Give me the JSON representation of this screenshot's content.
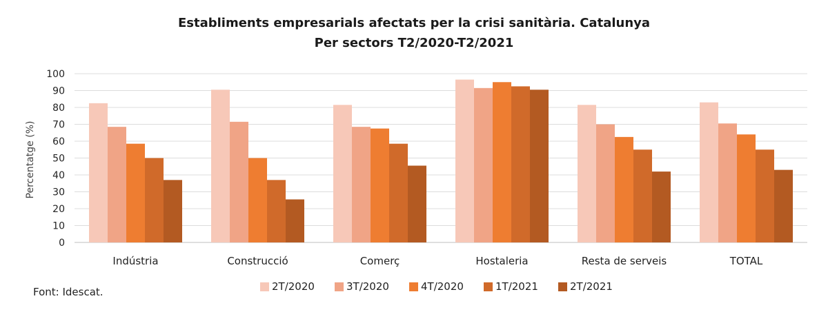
{
  "chart_data": {
    "type": "bar",
    "title": "Establiments empresarials afectats per la crisi sanitària. Catalunya",
    "subtitle": "Per sectors T2/2020-T2/2021",
    "ylabel": "Percentatge (%)",
    "xlabel": "",
    "ylim": [
      0,
      100
    ],
    "yticks": [
      0,
      10,
      20,
      30,
      40,
      50,
      60,
      70,
      80,
      90,
      100
    ],
    "grid": true,
    "legend_position": "bottom",
    "categories": [
      "Indústria",
      "Construcció",
      "Comerç",
      "Hostaleria",
      "Resta de serveis",
      "TOTAL"
    ],
    "series": [
      {
        "name": "2T/2020",
        "color": "#f7c8b8",
        "values": [
          82.5,
          90.5,
          81.5,
          96.5,
          81.5,
          83
        ]
      },
      {
        "name": "3T/2020",
        "color": "#f0a486",
        "values": [
          68.5,
          71.5,
          68.5,
          91.5,
          70,
          70.5
        ]
      },
      {
        "name": "4T/2020",
        "color": "#ee7d31",
        "values": [
          58.5,
          50,
          67.5,
          95,
          62.5,
          64
        ]
      },
      {
        "name": "1T/2021",
        "color": "#d06a2a",
        "values": [
          50,
          37,
          58.5,
          92.5,
          55,
          55
        ]
      },
      {
        "name": "2T/2021",
        "color": "#b35a22",
        "values": [
          37,
          25.5,
          45.5,
          90.5,
          42,
          43
        ]
      }
    ]
  },
  "source": "Font: Idescat."
}
